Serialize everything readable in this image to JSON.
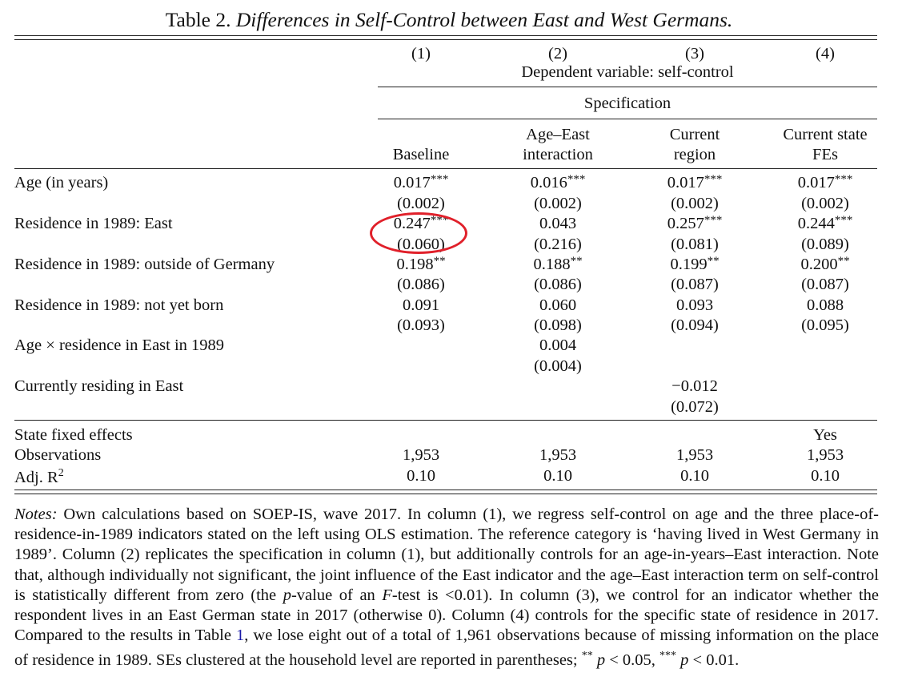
{
  "title": {
    "prefix": "Table 2.",
    "italic": "Differences in Self-Control between East and West Germans."
  },
  "columns": {
    "numbers": [
      "(1)",
      "(2)",
      "(3)",
      "(4)"
    ],
    "dependent_variable": "Dependent variable: self-control",
    "specification": "Specification",
    "headers": [
      [
        "Baseline"
      ],
      [
        "Age–East",
        "interaction"
      ],
      [
        "Current",
        "region"
      ],
      [
        "Current state",
        "FEs"
      ]
    ]
  },
  "rows": [
    {
      "label": "Age (in years)",
      "coef": [
        [
          "0.017",
          "***"
        ],
        [
          "0.016",
          "***"
        ],
        [
          "0.017",
          "***"
        ],
        [
          "0.017",
          "***"
        ]
      ],
      "se": [
        "(0.002)",
        "(0.002)",
        "(0.002)",
        "(0.002)"
      ]
    },
    {
      "label": "Residence in 1989: East",
      "coef": [
        [
          "0.247",
          "***"
        ],
        [
          "0.043",
          ""
        ],
        [
          "0.257",
          "***"
        ],
        [
          "0.244",
          "***"
        ]
      ],
      "se": [
        "(0.060)",
        "(0.216)",
        "(0.081)",
        "(0.089)"
      ]
    },
    {
      "label": "Residence in 1989: outside of Germany",
      "coef": [
        [
          "0.198",
          "**"
        ],
        [
          "0.188",
          "**"
        ],
        [
          "0.199",
          "**"
        ],
        [
          "0.200",
          "**"
        ]
      ],
      "se": [
        "(0.086)",
        "(0.086)",
        "(0.087)",
        "(0.087)"
      ]
    },
    {
      "label": "Residence in 1989: not yet born",
      "coef": [
        [
          "0.091",
          ""
        ],
        [
          "0.060",
          ""
        ],
        [
          "0.093",
          ""
        ],
        [
          "0.088",
          ""
        ]
      ],
      "se": [
        "(0.093)",
        "(0.098)",
        "(0.094)",
        "(0.095)"
      ]
    },
    {
      "label": "Age × residence in East in 1989",
      "coef": [
        [
          "",
          ""
        ],
        [
          "0.004",
          ""
        ],
        [
          "",
          ""
        ],
        [
          "",
          ""
        ]
      ],
      "se": [
        "",
        "(0.004)",
        "",
        ""
      ]
    },
    {
      "label": "Currently residing in East",
      "coef": [
        [
          "",
          ""
        ],
        [
          "",
          ""
        ],
        [
          "−0.012",
          ""
        ],
        [
          "",
          ""
        ]
      ],
      "se": [
        "",
        "",
        "(0.072)",
        ""
      ]
    }
  ],
  "footer": [
    {
      "label": "State fixed effects",
      "values": [
        "",
        "",
        "",
        "Yes"
      ]
    },
    {
      "label": "Observations",
      "values": [
        "1,953",
        "1,953",
        "1,953",
        "1,953"
      ]
    },
    {
      "label": "Adj. R",
      "sup": "2",
      "values": [
        "0.10",
        "0.10",
        "0.10",
        "0.10"
      ]
    }
  ],
  "notes": {
    "lead": "Notes:",
    "text1": " Own calculations based on SOEP-IS, wave 2017. In column (1), we regress self-control on age and the three place-of-residence-in-1989 indicators stated on the left using OLS estimation. The reference category is ‘having lived in West Germany in 1989’. Column (2) replicates the specification in column (1), but additionally controls for an age-in-years–East interaction. Note that, although individually not significant, the joint influence of the East indicator and the age–East interaction term on self-control is statistically different from zero (the ",
    "p1": "p",
    "text2": "-value of an ",
    "f": "F",
    "text3": "-test is <0.01). In column (3), we control for an indicator whether the respondent lives in an East German state in 2017 (otherwise 0). Column (4) controls for the specific state of residence in 2017. Compared to the results in Table ",
    "link": "1",
    "text4": ", we lose eight out of a total of 1,961 observations because of missing information on the place of residence in 1989. SEs clustered at the household level are reported in parentheses; ",
    "s2": "**",
    "p2": "p",
    "lt05": " < 0.05, ",
    "s3": "***",
    "p3": "p",
    "lt01": " < 0.01."
  },
  "annotation_color": "#e0202a"
}
